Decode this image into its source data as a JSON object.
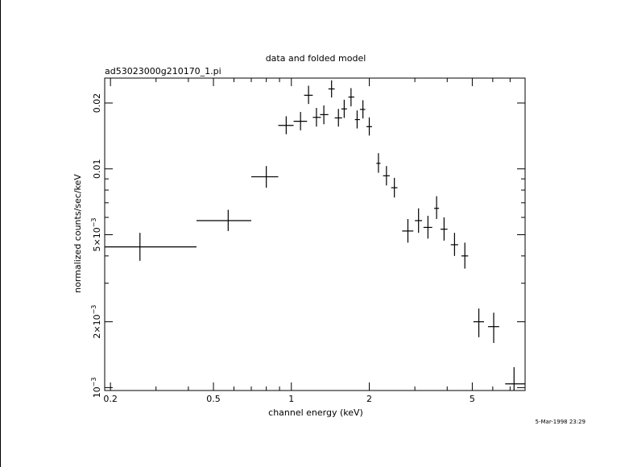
{
  "page": {
    "title": "data and folded model",
    "filename": "ad53023000g210170_1.pi",
    "timestamp": "5-Mar-1998 23:29"
  },
  "chart_data": {
    "type": "scatter",
    "title": "data and folded model",
    "subtitle": "ad53023000g210170_1.pi",
    "xlabel": "channel energy (keV)",
    "ylabel": "normalized counts/sec/keV",
    "x_scale": "log",
    "y_scale": "log",
    "xlim": [
      0.19,
      8.0
    ],
    "ylim": [
      0.00097,
      0.026
    ],
    "x_ticks": [
      {
        "value": 0.2,
        "label": "0.2"
      },
      {
        "value": 0.5,
        "label": "0.5"
      },
      {
        "value": 1,
        "label": "1"
      },
      {
        "value": 2,
        "label": "2"
      },
      {
        "value": 5,
        "label": "5"
      }
    ],
    "y_ticks": [
      {
        "value": 0.001,
        "label": "10⁻³",
        "base": "10",
        "exp": "−3"
      },
      {
        "value": 0.002,
        "label": "2×10⁻³",
        "base": "2×10",
        "exp": "−3"
      },
      {
        "value": 0.005,
        "label": "5×10⁻³",
        "base": "5×10",
        "exp": "−3"
      },
      {
        "value": 0.01,
        "label": "0.01"
      },
      {
        "value": 0.02,
        "label": "0.02"
      }
    ],
    "grid": false,
    "points": [
      {
        "x": 0.26,
        "xlo": 0.19,
        "xhi": 0.43,
        "y": 0.0044,
        "ylo": 0.0038,
        "yhi": 0.0051
      },
      {
        "x": 0.57,
        "xlo": 0.43,
        "xhi": 0.7,
        "y": 0.0058,
        "ylo": 0.0052,
        "yhi": 0.0065
      },
      {
        "x": 0.8,
        "xlo": 0.7,
        "xhi": 0.89,
        "y": 0.0092,
        "ylo": 0.0082,
        "yhi": 0.0103
      },
      {
        "x": 0.955,
        "xlo": 0.89,
        "xhi": 1.02,
        "y": 0.0158,
        "ylo": 0.0144,
        "yhi": 0.0174
      },
      {
        "x": 1.085,
        "xlo": 1.02,
        "xhi": 1.15,
        "y": 0.0165,
        "ylo": 0.015,
        "yhi": 0.0182
      },
      {
        "x": 1.165,
        "xlo": 1.12,
        "xhi": 1.21,
        "y": 0.0217,
        "ylo": 0.0198,
        "yhi": 0.024
      },
      {
        "x": 1.25,
        "xlo": 1.21,
        "xhi": 1.3,
        "y": 0.0172,
        "ylo": 0.0156,
        "yhi": 0.019
      },
      {
        "x": 1.335,
        "xlo": 1.29,
        "xhi": 1.39,
        "y": 0.0177,
        "ylo": 0.016,
        "yhi": 0.0195
      },
      {
        "x": 1.43,
        "xlo": 1.39,
        "xhi": 1.47,
        "y": 0.0232,
        "ylo": 0.0212,
        "yhi": 0.0254
      },
      {
        "x": 1.52,
        "xlo": 1.47,
        "xhi": 1.57,
        "y": 0.0171,
        "ylo": 0.0156,
        "yhi": 0.0188
      },
      {
        "x": 1.6,
        "xlo": 1.56,
        "xhi": 1.64,
        "y": 0.0188,
        "ylo": 0.0171,
        "yhi": 0.0207
      },
      {
        "x": 1.7,
        "xlo": 1.66,
        "xhi": 1.75,
        "y": 0.0213,
        "ylo": 0.0193,
        "yhi": 0.0234
      },
      {
        "x": 1.795,
        "xlo": 1.76,
        "xhi": 1.84,
        "y": 0.0168,
        "ylo": 0.0153,
        "yhi": 0.0185
      },
      {
        "x": 1.89,
        "xlo": 1.84,
        "xhi": 1.93,
        "y": 0.0187,
        "ylo": 0.017,
        "yhi": 0.0206
      },
      {
        "x": 2.0,
        "xlo": 1.95,
        "xhi": 2.05,
        "y": 0.0156,
        "ylo": 0.0142,
        "yhi": 0.0172
      },
      {
        "x": 2.17,
        "xlo": 2.13,
        "xhi": 2.21,
        "y": 0.0106,
        "ylo": 0.0096,
        "yhi": 0.0118
      },
      {
        "x": 2.33,
        "xlo": 2.26,
        "xhi": 2.4,
        "y": 0.0093,
        "ylo": 0.0084,
        "yhi": 0.0103
      },
      {
        "x": 2.5,
        "xlo": 2.43,
        "xhi": 2.57,
        "y": 0.0082,
        "ylo": 0.0074,
        "yhi": 0.0091
      },
      {
        "x": 2.82,
        "xlo": 2.68,
        "xhi": 2.96,
        "y": 0.0052,
        "ylo": 0.0046,
        "yhi": 0.0059
      },
      {
        "x": 3.1,
        "xlo": 3.0,
        "xhi": 3.2,
        "y": 0.0058,
        "ylo": 0.0051,
        "yhi": 0.0066
      },
      {
        "x": 3.37,
        "xlo": 3.24,
        "xhi": 3.5,
        "y": 0.0054,
        "ylo": 0.0048,
        "yhi": 0.0061
      },
      {
        "x": 3.64,
        "xlo": 3.56,
        "xhi": 3.72,
        "y": 0.0066,
        "ylo": 0.0059,
        "yhi": 0.0075
      },
      {
        "x": 3.89,
        "xlo": 3.77,
        "xhi": 4.01,
        "y": 0.0053,
        "ylo": 0.0047,
        "yhi": 0.006
      },
      {
        "x": 4.27,
        "xlo": 4.13,
        "xhi": 4.41,
        "y": 0.0045,
        "ylo": 0.004,
        "yhi": 0.0051
      },
      {
        "x": 4.68,
        "xlo": 4.54,
        "xhi": 4.82,
        "y": 0.004,
        "ylo": 0.0035,
        "yhi": 0.0046
      },
      {
        "x": 5.3,
        "xlo": 5.05,
        "xhi": 5.55,
        "y": 0.002,
        "ylo": 0.0017,
        "yhi": 0.0023
      },
      {
        "x": 6.05,
        "xlo": 5.75,
        "xhi": 6.35,
        "y": 0.0019,
        "ylo": 0.0016,
        "yhi": 0.0022
      },
      {
        "x": 7.25,
        "xlo": 6.7,
        "xhi": 8.0,
        "y": 0.00104,
        "ylo": 0.00097,
        "yhi": 0.00124
      }
    ]
  }
}
